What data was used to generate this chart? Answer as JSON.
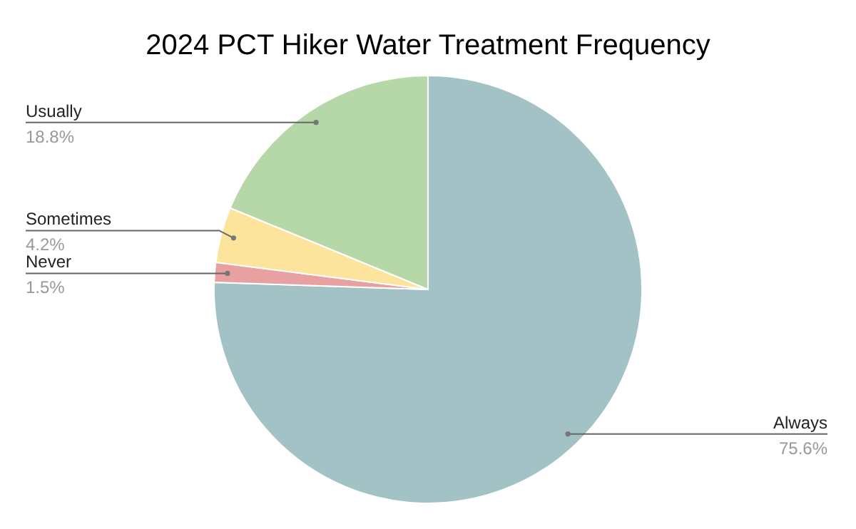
{
  "chart_data": {
    "type": "pie",
    "title": "2024 PCT Hiker Water Treatment Frequency",
    "categories": [
      "Always",
      "Never",
      "Sometimes",
      "Usually"
    ],
    "values": [
      75.6,
      1.5,
      4.2,
      18.8
    ],
    "value_labels": [
      "75.6%",
      "1.5%",
      "4.2%",
      "18.8%"
    ],
    "colors": [
      "#a3c2c6",
      "#e8a0a0",
      "#fde49c",
      "#b6d7a8"
    ],
    "legend": false
  }
}
